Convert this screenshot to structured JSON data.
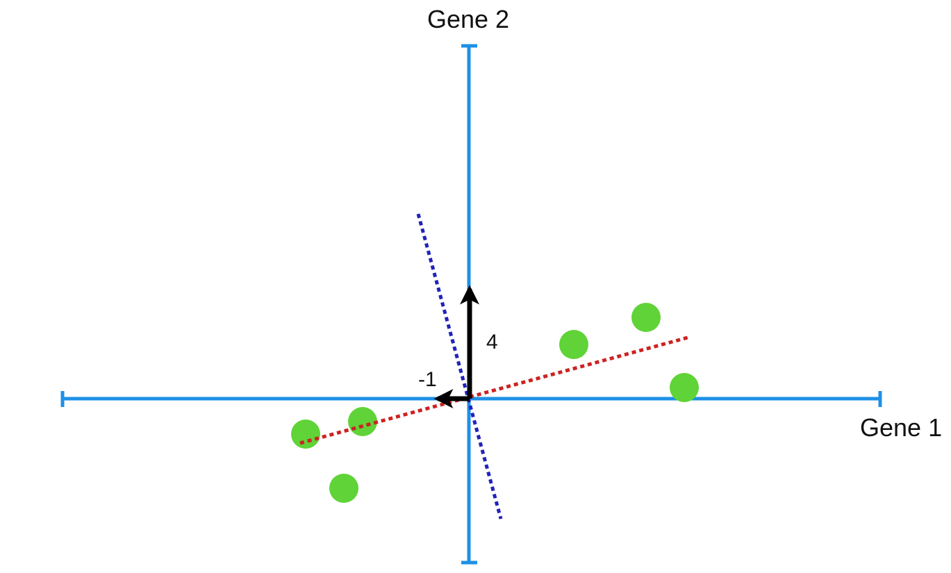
{
  "diagram": {
    "x_axis_label": "Gene 1",
    "y_axis_label": "Gene 2",
    "vector_x_label": "-1",
    "vector_y_label": "4",
    "colors": {
      "axis": "#1e90e6",
      "points": "#5fd337",
      "pc1_line": "#cc2222",
      "pc2_line": "#2222bb",
      "vector": "#000000",
      "text": "#111111"
    }
  }
}
